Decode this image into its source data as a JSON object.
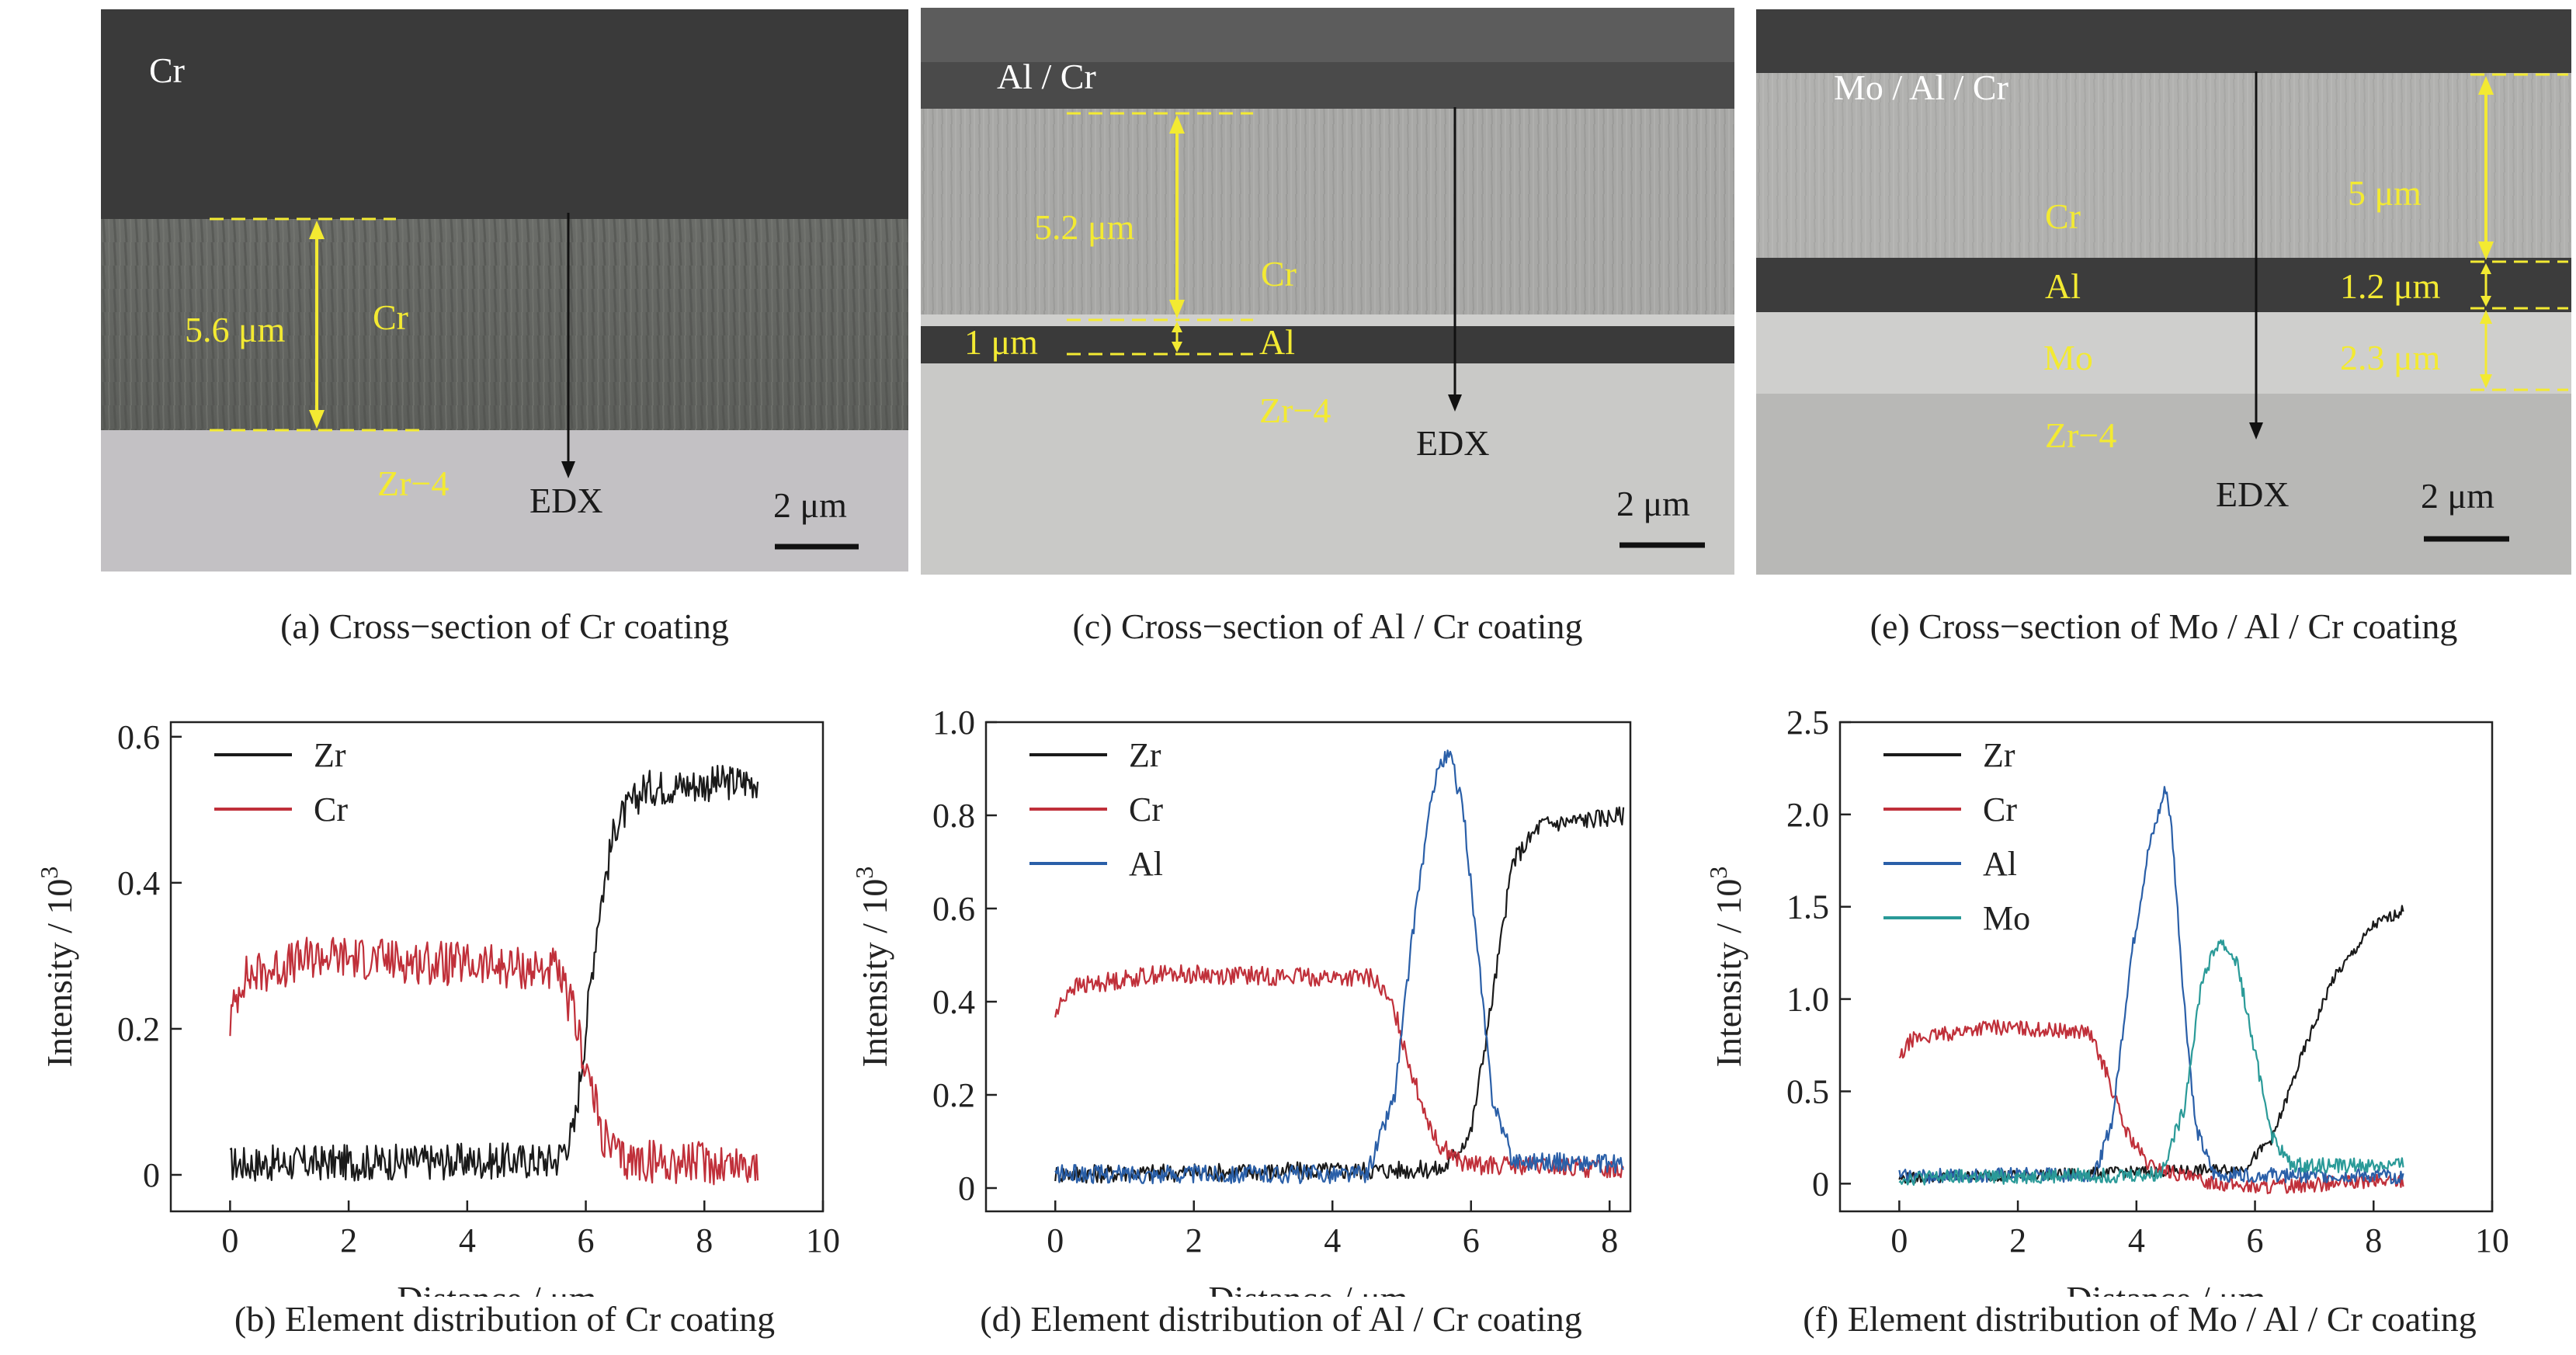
{
  "colors": {
    "zr": "#1a1a1a",
    "cr": "#c0303a",
    "al": "#2a5fa8",
    "mo": "#2a9a98",
    "annotation": "#f3ea32"
  },
  "sem_a": {
    "top_label": "Cr",
    "layer_label": "Cr",
    "thickness": "5.6 μm",
    "substrate": "Zr−4",
    "edx": "EDX",
    "scale": "2 μm"
  },
  "sem_c": {
    "top_label": "Al / Cr",
    "layer_cr": "Cr",
    "layer_al": "Al",
    "thickness_cr": "5.2 μm",
    "thickness_al": "1 μm",
    "substrate": "Zr−4",
    "edx": "EDX",
    "scale": "2 μm"
  },
  "sem_e": {
    "top_label": "Mo / Al / Cr",
    "layer_cr": "Cr",
    "layer_al": "Al",
    "layer_mo": "Mo",
    "thickness_cr": "5 μm",
    "thickness_al": "1.2 μm",
    "thickness_mo": "2.3 μm",
    "substrate": "Zr−4",
    "edx": "EDX",
    "scale": "2 μm"
  },
  "captions": {
    "a": "(a) Cross−section of Cr coating",
    "c": "(c) Cross−section of Al / Cr coating",
    "e": "(e) Cross−section of Mo / Al / Cr coating",
    "b": "(b) Element distribution of Cr coating",
    "d": "(d) Element distribution of Al / Cr coating",
    "f": "(f) Element distribution of Mo / Al / Cr coating"
  },
  "chart_data": [
    {
      "type": "line",
      "xlabel": "Distance / μm",
      "ylabel": "Intensity / 10",
      "ylabel_sup": "3",
      "xlim": [
        -1,
        10
      ],
      "ylim": [
        -0.05,
        0.62
      ],
      "xticks": [
        0,
        2,
        4,
        6,
        8,
        10
      ],
      "yticks": [
        0,
        0.2,
        0.4,
        0.6
      ],
      "ytick_labels": [
        "0",
        "0.2",
        "0.4",
        "0.6"
      ],
      "legend": "top-left",
      "series": [
        {
          "name": "Zr",
          "color": "#1a1a1a",
          "noise": 0.025,
          "points": [
            [
              0,
              0.015
            ],
            [
              5.5,
              0.02
            ],
            [
              5.8,
              0.06
            ],
            [
              6.0,
              0.2
            ],
            [
              6.2,
              0.35
            ],
            [
              6.5,
              0.48
            ],
            [
              7.0,
              0.53
            ],
            [
              8.9,
              0.54
            ]
          ]
        },
        {
          "name": "Cr",
          "color": "#c0303a",
          "noise": 0.03,
          "points": [
            [
              0,
              0.21
            ],
            [
              0.2,
              0.27
            ],
            [
              1.5,
              0.3
            ],
            [
              5.5,
              0.28
            ],
            [
              5.8,
              0.22
            ],
            [
              6.0,
              0.15
            ],
            [
              6.3,
              0.05
            ],
            [
              6.6,
              0.02
            ],
            [
              8.9,
              0.015
            ]
          ]
        }
      ]
    },
    {
      "type": "line",
      "xlabel": "Distance / μm",
      "ylabel": "Intensity / 10",
      "ylabel_sup": "3",
      "xlim": [
        -1,
        8.3
      ],
      "ylim": [
        -0.05,
        1.0
      ],
      "xticks": [
        0,
        2,
        4,
        6,
        8
      ],
      "yticks": [
        0,
        0.2,
        0.4,
        0.6,
        0.8,
        1.0
      ],
      "ytick_labels": [
        "0",
        "0.2",
        "0.4",
        "0.6",
        "0.8",
        "1.0"
      ],
      "legend": "top-left",
      "series": [
        {
          "name": "Zr",
          "color": "#1a1a1a",
          "noise": 0.02,
          "points": [
            [
              0,
              0.03
            ],
            [
              5.6,
              0.04
            ],
            [
              6.0,
              0.12
            ],
            [
              6.3,
              0.4
            ],
            [
              6.6,
              0.7
            ],
            [
              7.0,
              0.78
            ],
            [
              8.2,
              0.8
            ]
          ]
        },
        {
          "name": "Cr",
          "color": "#c0303a",
          "noise": 0.02,
          "points": [
            [
              0,
              0.37
            ],
            [
              0.2,
              0.43
            ],
            [
              1.5,
              0.46
            ],
            [
              4.6,
              0.45
            ],
            [
              4.9,
              0.38
            ],
            [
              5.2,
              0.22
            ],
            [
              5.5,
              0.1
            ],
            [
              5.9,
              0.05
            ],
            [
              8.2,
              0.04
            ]
          ]
        },
        {
          "name": "Al",
          "color": "#2a5fa8",
          "noise": 0.02,
          "points": [
            [
              0,
              0.03
            ],
            [
              4.5,
              0.03
            ],
            [
              4.9,
              0.2
            ],
            [
              5.2,
              0.6
            ],
            [
              5.5,
              0.9
            ],
            [
              5.7,
              0.93
            ],
            [
              5.9,
              0.8
            ],
            [
              6.1,
              0.5
            ],
            [
              6.3,
              0.2
            ],
            [
              6.6,
              0.06
            ],
            [
              8.2,
              0.05
            ]
          ]
        }
      ]
    },
    {
      "type": "line",
      "xlabel": "Distance / μm",
      "ylabel": "Intensity / 10",
      "ylabel_sup": "3",
      "xlim": [
        -1,
        10
      ],
      "ylim": [
        -0.15,
        2.5
      ],
      "xticks": [
        0,
        2,
        4,
        6,
        8,
        10
      ],
      "yticks": [
        0,
        0.5,
        1.0,
        1.5,
        2.0,
        2.5
      ],
      "ytick_labels": [
        "0",
        "0.5",
        "1.0",
        "1.5",
        "2.0",
        "2.5"
      ],
      "legend": "top-left",
      "series": [
        {
          "name": "Zr",
          "color": "#1a1a1a",
          "noise": 0.03,
          "points": [
            [
              0,
              0.03
            ],
            [
              5.8,
              0.08
            ],
            [
              6.3,
              0.25
            ],
            [
              6.8,
              0.7
            ],
            [
              7.3,
              1.1
            ],
            [
              8.0,
              1.4
            ],
            [
              8.5,
              1.48
            ]
          ]
        },
        {
          "name": "Cr",
          "color": "#c0303a",
          "noise": 0.04,
          "points": [
            [
              0,
              0.67
            ],
            [
              0.2,
              0.78
            ],
            [
              1.5,
              0.85
            ],
            [
              3.2,
              0.82
            ],
            [
              3.5,
              0.6
            ],
            [
              3.8,
              0.3
            ],
            [
              4.2,
              0.1
            ],
            [
              5,
              0.02
            ],
            [
              6,
              -0.02
            ],
            [
              8.5,
              0.02
            ]
          ]
        },
        {
          "name": "Al",
          "color": "#2a5fa8",
          "noise": 0.04,
          "points": [
            [
              0,
              0.04
            ],
            [
              3.3,
              0.05
            ],
            [
              3.6,
              0.35
            ],
            [
              3.9,
              1.2
            ],
            [
              4.2,
              1.8
            ],
            [
              4.5,
              2.15
            ],
            [
              4.6,
              1.9
            ],
            [
              4.8,
              1.0
            ],
            [
              5.0,
              0.3
            ],
            [
              5.3,
              0.05
            ],
            [
              8.5,
              0.04
            ]
          ]
        },
        {
          "name": "Mo",
          "color": "#2a9a98",
          "noise": 0.04,
          "points": [
            [
              0,
              0.03
            ],
            [
              4.4,
              0.05
            ],
            [
              4.8,
              0.4
            ],
            [
              5.1,
              1.1
            ],
            [
              5.4,
              1.32
            ],
            [
              5.7,
              1.2
            ],
            [
              6.0,
              0.7
            ],
            [
              6.3,
              0.25
            ],
            [
              6.6,
              0.1
            ],
            [
              8.5,
              0.1
            ]
          ]
        }
      ]
    }
  ]
}
